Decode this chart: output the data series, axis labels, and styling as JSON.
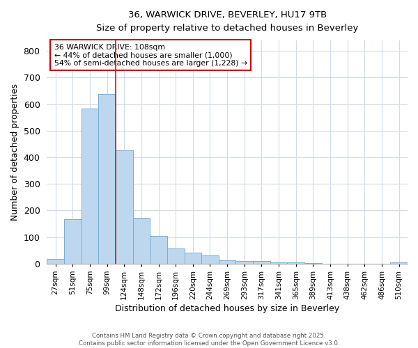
{
  "title_line1": "36, WARWICK DRIVE, BEVERLEY, HU17 9TB",
  "title_line2": "Size of property relative to detached houses in Beverley",
  "xlabel": "Distribution of detached houses by size in Beverley",
  "ylabel": "Number of detached properties",
  "bar_labels": [
    "27sqm",
    "51sqm",
    "75sqm",
    "99sqm",
    "124sqm",
    "148sqm",
    "172sqm",
    "196sqm",
    "220sqm",
    "244sqm",
    "269sqm",
    "293sqm",
    "317sqm",
    "341sqm",
    "365sqm",
    "389sqm",
    "413sqm",
    "438sqm",
    "462sqm",
    "486sqm",
    "510sqm"
  ],
  "bar_values": [
    18,
    168,
    583,
    638,
    425,
    172,
    105,
    57,
    42,
    32,
    14,
    10,
    9,
    6,
    5,
    2,
    1,
    0,
    0,
    0,
    5
  ],
  "bar_color": "#bdd7ee",
  "bar_edgecolor": "#7aadd4",
  "ylim": [
    0,
    840
  ],
  "yticks": [
    0,
    100,
    200,
    300,
    400,
    500,
    600,
    700,
    800
  ],
  "annotation_text": "36 WARWICK DRIVE: 108sqm\n← 44% of detached houses are smaller (1,000)\n54% of semi-detached houses are larger (1,228) →",
  "annotation_box_facecolor": "#ffffff",
  "annotation_box_edgecolor": "#cc0000",
  "red_line_x": 3.5,
  "footnote_line1": "Contains HM Land Registry data © Crown copyright and database right 2025.",
  "footnote_line2": "Contains public sector information licensed under the Open Government Licence v3.0.",
  "background_color": "#ffffff",
  "plot_background": "#ffffff",
  "grid_color": "#d0dce8"
}
